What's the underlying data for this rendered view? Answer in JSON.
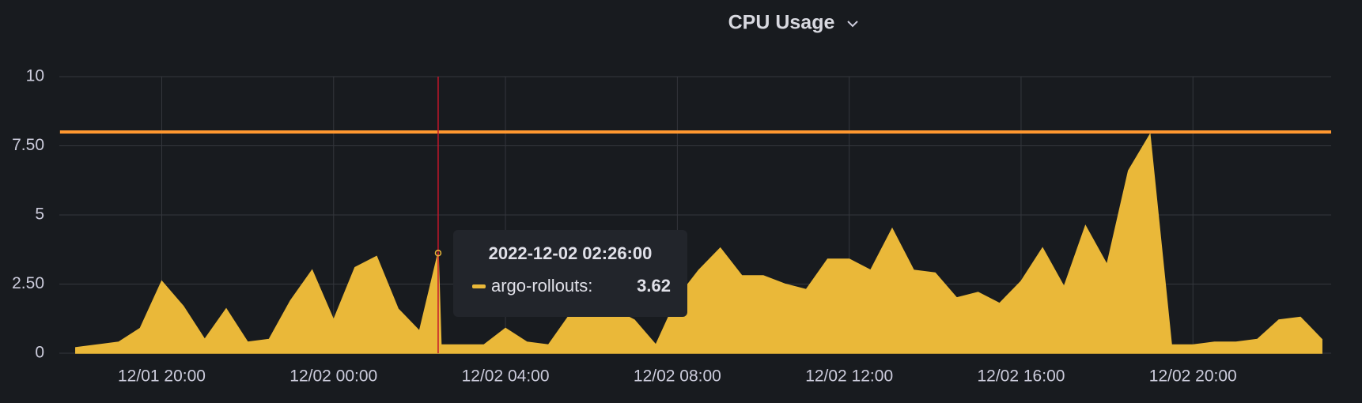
{
  "chart_data": {
    "type": "area",
    "title": "CPU Usage",
    "x": [
      "2022-12-01T18:00:00",
      "2022-12-01T18:30:00",
      "2022-12-01T19:00:00",
      "2022-12-01T19:30:00",
      "2022-12-01T20:00:00",
      "2022-12-01T20:30:00",
      "2022-12-01T21:00:00",
      "2022-12-01T21:30:00",
      "2022-12-01T22:00:00",
      "2022-12-01T22:30:00",
      "2022-12-01T23:00:00",
      "2022-12-01T23:30:00",
      "2022-12-02T00:00:00",
      "2022-12-02T00:30:00",
      "2022-12-02T01:00:00",
      "2022-12-02T01:30:00",
      "2022-12-02T02:00:00",
      "2022-12-02T02:26:00",
      "2022-12-02T02:30:00",
      "2022-12-02T03:00:00",
      "2022-12-02T03:30:00",
      "2022-12-02T04:00:00",
      "2022-12-02T04:30:00",
      "2022-12-02T05:00:00",
      "2022-12-02T05:30:00",
      "2022-12-02T06:00:00",
      "2022-12-02T06:30:00",
      "2022-12-02T07:00:00",
      "2022-12-02T07:30:00",
      "2022-12-02T08:00:00",
      "2022-12-02T08:30:00",
      "2022-12-02T09:00:00",
      "2022-12-02T09:30:00",
      "2022-12-02T10:00:00",
      "2022-12-02T10:30:00",
      "2022-12-02T11:00:00",
      "2022-12-02T11:30:00",
      "2022-12-02T12:00:00",
      "2022-12-02T12:30:00",
      "2022-12-02T13:00:00",
      "2022-12-02T13:30:00",
      "2022-12-02T14:00:00",
      "2022-12-02T14:30:00",
      "2022-12-02T15:00:00",
      "2022-12-02T15:30:00",
      "2022-12-02T16:00:00",
      "2022-12-02T16:30:00",
      "2022-12-02T17:00:00",
      "2022-12-02T17:30:00",
      "2022-12-02T18:00:00",
      "2022-12-02T18:30:00",
      "2022-12-02T19:00:00",
      "2022-12-02T19:30:00",
      "2022-12-02T20:00:00",
      "2022-12-02T20:30:00",
      "2022-12-02T21:00:00",
      "2022-12-02T21:30:00",
      "2022-12-02T22:00:00",
      "2022-12-02T22:30:00",
      "2022-12-02T23:00:00"
    ],
    "series": [
      {
        "name": "argo-rollouts",
        "color": "#eab839",
        "values": [
          0.2,
          0.3,
          0.4,
          0.9,
          2.6,
          1.7,
          0.5,
          1.6,
          0.4,
          0.5,
          1.9,
          3.0,
          1.2,
          3.1,
          3.5,
          1.6,
          0.8,
          3.62,
          0.3,
          0.3,
          0.3,
          0.9,
          0.4,
          0.3,
          1.4,
          1.8,
          1.6,
          1.2,
          0.3,
          2.0,
          3.0,
          3.8,
          2.8,
          2.8,
          2.5,
          2.3,
          3.4,
          3.4,
          3.0,
          4.5,
          3.0,
          2.9,
          2.0,
          2.2,
          1.8,
          2.6,
          3.8,
          2.4,
          4.6,
          3.2,
          6.6,
          7.9,
          0.3,
          0.3,
          0.4,
          0.4,
          0.5,
          1.2,
          1.3,
          0.5
        ]
      }
    ],
    "threshold": {
      "value": 8,
      "color": "#ff9830"
    },
    "xlim": [
      "2022-12-01T17:37:00",
      "2022-12-02T23:13:00"
    ],
    "xticks": [
      {
        "value": "2022-12-01T20:00:00",
        "label": "12/01 20:00"
      },
      {
        "value": "2022-12-02T00:00:00",
        "label": "12/02 00:00"
      },
      {
        "value": "2022-12-02T04:00:00",
        "label": "12/02 04:00"
      },
      {
        "value": "2022-12-02T08:00:00",
        "label": "12/02 08:00"
      },
      {
        "value": "2022-12-02T12:00:00",
        "label": "12/02 12:00"
      },
      {
        "value": "2022-12-02T16:00:00",
        "label": "12/02 16:00"
      },
      {
        "value": "2022-12-02T20:00:00",
        "label": "12/02 20:00"
      }
    ],
    "ylim": [
      0,
      10
    ],
    "yticks": [
      0,
      {
        "value": 2.5,
        "label": "2.50"
      },
      5,
      {
        "value": 7.5,
        "label": "7.50"
      },
      10
    ],
    "grid": true,
    "tooltip": {
      "time": "2022-12-02 02:26:00",
      "series_label": "argo-rollouts:",
      "crosshair_color": "#c4162a"
    }
  }
}
